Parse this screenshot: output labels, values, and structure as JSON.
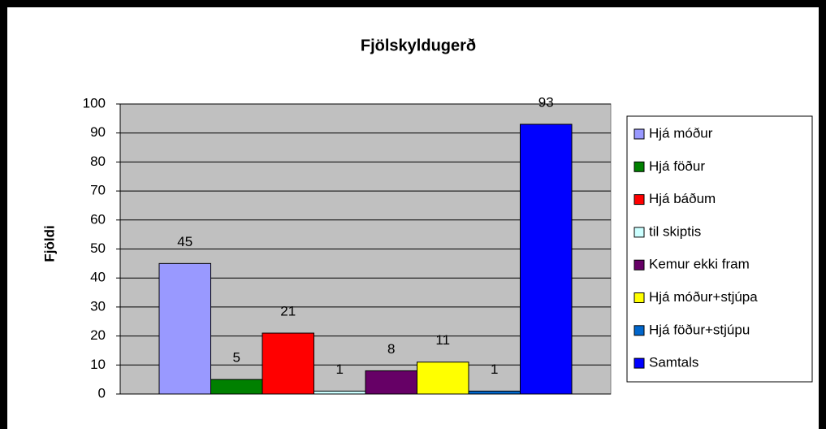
{
  "chart_data": {
    "type": "bar",
    "title": "Fjölskyldugerð",
    "ylabel": "Fjöldi",
    "categories": [
      null
    ],
    "series": [
      {
        "name": "Hjá móður",
        "color": "#9999ff",
        "values": [
          45
        ]
      },
      {
        "name": "Hjá föður",
        "color": "#008000",
        "values": [
          5
        ]
      },
      {
        "name": "Hjá báðum",
        "color": "#ff0000",
        "values": [
          21
        ]
      },
      {
        "name": "til skiptis",
        "color": "#ccffff",
        "values": [
          1
        ]
      },
      {
        "name": "Kemur ekki fram",
        "color": "#660066",
        "values": [
          8
        ]
      },
      {
        "name": "Hjá móður+stjúpa",
        "color": "#ffff00",
        "values": [
          11
        ]
      },
      {
        "name": "Hjá föður+stjúpu",
        "color": "#0066cc",
        "values": [
          1
        ]
      },
      {
        "name": "Samtals",
        "color": "#0000ff",
        "values": [
          93
        ]
      }
    ],
    "ylim": [
      0,
      100
    ],
    "yticks": [
      0,
      10,
      20,
      30,
      40,
      50,
      60,
      70,
      80,
      90,
      100
    ],
    "grid": true,
    "legend": "right"
  }
}
